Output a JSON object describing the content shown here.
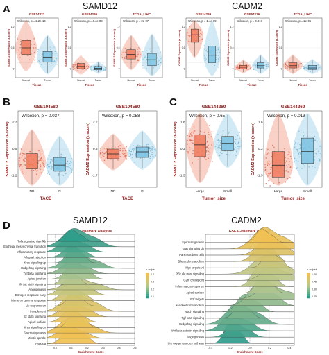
{
  "figure": {
    "panel_letters": [
      "A",
      "B",
      "C",
      "D"
    ],
    "gene_titles": {
      "A_left": "SAMD12",
      "A_right": "CADM2",
      "D_left": "SAMD12",
      "D_right": "CADM2"
    }
  },
  "colors": {
    "tumor": "#e0604a",
    "normal": "#6cb4d6",
    "box_tumor": "#ee7b5d",
    "box_normal": "#7ec3e3",
    "title_red": "#8e1b1b",
    "grid": "#e6e6e6",
    "ridge_low": "#2f9c8a",
    "ridge_mid": "#b8c78e",
    "ridge_high": "#f0c052"
  },
  "chart_data": [
    {
      "type": "box",
      "panel": "A",
      "title": "GSE14323",
      "stat": "Wilcoxon, p = 2.2e-16",
      "ylabel": "SAMD12 Expression (z-score)",
      "xlabel": "Tissue",
      "categories": [
        "Normal",
        "Tumor"
      ],
      "medians": [
        0.6,
        0.35
      ],
      "q1": [
        0.42,
        0.22
      ],
      "q3": [
        0.8,
        0.5
      ],
      "ylim": [
        -0.2,
        1.4
      ]
    },
    {
      "type": "box",
      "panel": "A",
      "title": "GSE54236",
      "stat": "Wilcoxon, p = 4.4e-08",
      "ylabel": "SAMD12 Expression (z-score)",
      "xlabel": "Tissue",
      "categories": [
        "Normal",
        "Tumor"
      ],
      "medians": [
        0.1,
        0.05
      ],
      "q1": [
        0.04,
        0.01
      ],
      "q3": [
        0.18,
        0.1
      ],
      "ylim": [
        -0.2,
        1.4
      ]
    },
    {
      "type": "box",
      "panel": "A",
      "title": "TCGA_LIHC",
      "stat": "Wilcoxon, p = 2e-07",
      "ylabel": "SAMD12 Expression (z-score)",
      "xlabel": "Tissue",
      "categories": [
        "Normal",
        "Tumor"
      ],
      "medians": [
        0.42,
        0.28
      ],
      "q1": [
        0.3,
        0.12
      ],
      "q3": [
        0.55,
        0.45
      ],
      "ylim": [
        -0.2,
        1.4
      ]
    },
    {
      "type": "box",
      "panel": "A",
      "title": "GSE14269",
      "stat": "Wilcoxon, p = 1.4e-09",
      "ylabel": "CADM2 Expression (z-score)",
      "xlabel": "Tissue",
      "categories": [
        "Normal",
        "Tumor"
      ],
      "medians": [
        0.95,
        0.4
      ],
      "q1": [
        0.75,
        0.2
      ],
      "q3": [
        1.1,
        0.65
      ],
      "ylim": [
        -0.2,
        1.4
      ]
    },
    {
      "type": "box",
      "panel": "A",
      "title": "GSE54236",
      "stat": "Wilcoxon, p = 0.017",
      "ylabel": "CADM2 Expression (z-score)",
      "xlabel": "Tissue",
      "categories": [
        "Normal",
        "Tumor"
      ],
      "medians": [
        0.08,
        0.12
      ],
      "q1": [
        0.03,
        0.06
      ],
      "q3": [
        0.13,
        0.2
      ],
      "ylim": [
        -0.2,
        1.4
      ]
    },
    {
      "type": "box",
      "panel": "A",
      "title": "TCGA_LIHC",
      "stat": "Wilcoxon, p = 2e-05",
      "ylabel": "CADM2 Expression (z-score)",
      "xlabel": "Tissue",
      "categories": [
        "Normal",
        "Tumor"
      ],
      "medians": [
        0.12,
        0.06
      ],
      "q1": [
        0.06,
        0.02
      ],
      "q3": [
        0.2,
        0.13
      ],
      "ylim": [
        -0.2,
        1.4
      ]
    },
    {
      "type": "box",
      "panel": "B",
      "title": "GSE104580",
      "stat": "Wilcoxon, p = 0.037",
      "ylabel": "SAMD12 Expression (z-score)",
      "xlabel": "TACE",
      "categories": [
        "NR",
        "R"
      ],
      "medians": [
        -0.35,
        -0.55
      ],
      "q1": [
        -0.8,
        -0.95
      ],
      "q3": [
        0.2,
        -0.05
      ],
      "ylim": [
        -2,
        3
      ]
    },
    {
      "type": "box",
      "panel": "B",
      "title": "GSE104580",
      "stat": "Wilcoxon, p = 0.058",
      "ylabel": "CADM2 Expression (z-score)",
      "xlabel": "TACE",
      "categories": [
        "NR",
        "R"
      ],
      "medians": [
        -0.1,
        0.05
      ],
      "q1": [
        -0.45,
        -0.35
      ],
      "q3": [
        0.25,
        0.4
      ],
      "ylim": [
        -2.5,
        3
      ]
    },
    {
      "type": "box",
      "panel": "C",
      "title": "GSE144269",
      "stat": "Wilcoxon, p = 0.65",
      "ylabel": "SAMD12 Expression (z-score)",
      "xlabel": "Tumor_size",
      "categories": [
        "Large",
        "Small"
      ],
      "medians": [
        0.5,
        0.6
      ],
      "q1": [
        -0.2,
        0.15
      ],
      "q3": [
        1.1,
        1.0
      ],
      "ylim": [
        -2,
        2.5
      ]
    },
    {
      "type": "box",
      "panel": "C",
      "title": "GSE144269",
      "stat": "Wilcoxon, p = 0.013",
      "ylabel": "CADM2 Expression (z-score)",
      "xlabel": "Tumor_size",
      "categories": [
        "Large",
        "Small"
      ],
      "medians": [
        -0.7,
        0.1
      ],
      "q1": [
        -1.4,
        -0.6
      ],
      "q3": [
        0.1,
        0.9
      ],
      "ylim": [
        -2,
        2.5
      ]
    },
    {
      "type": "ridge",
      "panel": "D",
      "gene": "SAMD12",
      "title": "GSEA--Hallmark Analysis",
      "xlabel": "Enrichment Score",
      "xlim": [
        -0.05,
        0.5
      ],
      "xticks": [
        "0.0",
        "0.1",
        "0.2",
        "0.3",
        "0.4",
        "0.5"
      ],
      "legend": {
        "title": "p.adjust",
        "ticks": [
          "0.4",
          "0.3",
          "0.2",
          "0.1"
        ]
      },
      "pathways": [
        "Tnfa signaling via nfkb",
        "Epithelial mesenchymal transition",
        "Inflammatory response",
        "Allograft rejection",
        "Kras signaling up",
        "Hedgehog signaling",
        "Tgf beta signaling",
        "Apical junction",
        "Il6 jak stat3 signaling",
        "Angiogenesis",
        "Estrogen response early",
        "Interferon gamma response",
        "Uv response dn",
        "Complement",
        "Il2 stat5 signaling",
        "Apical surface",
        "Kras signaling dn",
        "Spermatogenesis",
        "Mitotic spindle",
        "Hypoxia"
      ],
      "peaks": [
        0.1,
        0.12,
        0.09,
        0.1,
        0.11,
        0.13,
        0.1,
        0.12,
        0.08,
        0.14,
        0.1,
        0.09,
        0.11,
        0.12,
        0.1,
        0.09,
        0.12,
        0.1,
        0.08,
        0.1
      ],
      "p_adjust": [
        0.05,
        0.07,
        0.08,
        0.1,
        0.12,
        0.14,
        0.17,
        0.2,
        0.22,
        0.25,
        0.27,
        0.3,
        0.32,
        0.34,
        0.36,
        0.37,
        0.38,
        0.39,
        0.4,
        0.4
      ]
    },
    {
      "type": "ridge",
      "panel": "D",
      "gene": "CADM2",
      "title": "GSEA--Hallmark Analysis",
      "xlabel": "Enrichment Score",
      "xlim": [
        -0.45,
        0.45
      ],
      "xticks": [
        "-0.4",
        "-0.2",
        "0.0",
        "0.2",
        "0.4"
      ],
      "legend": {
        "title": "p.adjust",
        "ticks": [
          "1.00",
          "0.75",
          "0.50",
          "0.25"
        ]
      },
      "pathways": [
        "Spermatogenesis",
        "Kras signaling dn",
        "Pancreas beta cells",
        "Bile acid metabolism",
        "Myc targets v2",
        "Pi3k akt mtor signaling",
        "G2m checkpoint",
        "Inflammatory response",
        "Apical surface",
        "E2f targets",
        "Xenobiotic metabolism",
        "Notch signaling",
        "Tgf beta signaling",
        "Hedgehog signaling",
        "Wnt beta catenin signaling",
        "Angiogenesis",
        "Ure oxygen species pathway"
      ],
      "peaks": [
        0.12,
        0.15,
        0.18,
        0.1,
        0.2,
        0.14,
        0.22,
        0.1,
        0.12,
        0.2,
        0.08,
        -0.05,
        -0.1,
        -0.12,
        -0.18,
        -0.15,
        -0.2
      ],
      "p_adjust": [
        0.9,
        0.85,
        0.75,
        0.7,
        0.6,
        0.55,
        0.5,
        0.5,
        0.45,
        0.4,
        0.35,
        0.3,
        0.28,
        0.22,
        0.15,
        0.1,
        0.05
      ]
    }
  ]
}
